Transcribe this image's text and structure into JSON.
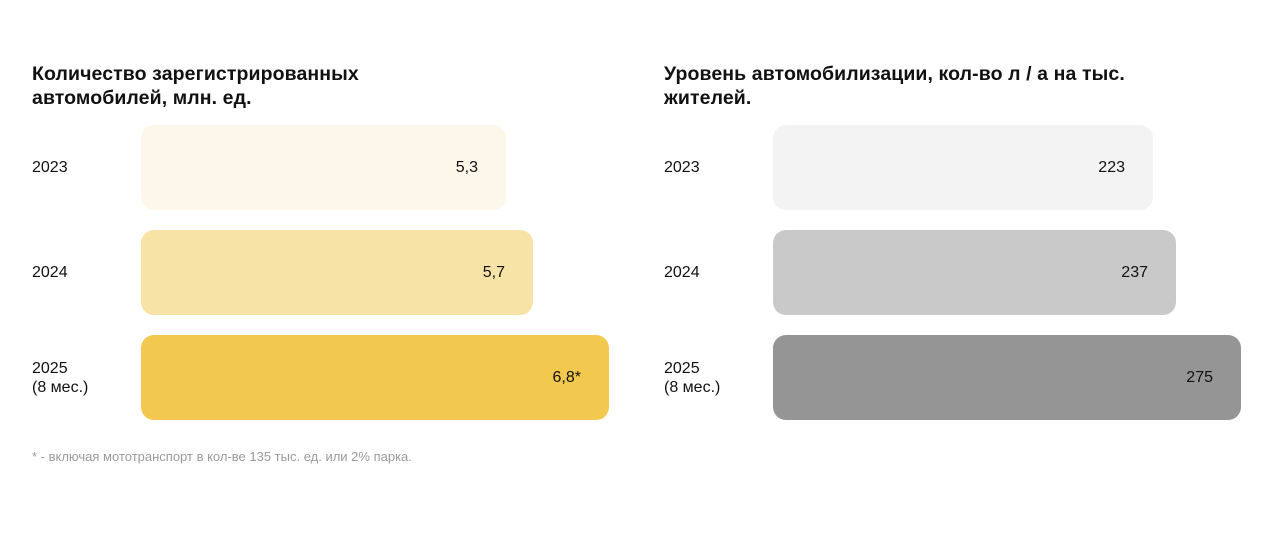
{
  "chart_data": [
    {
      "type": "bar",
      "orientation": "horizontal",
      "title": "Количество зарегистрированных автомобилей, млн. ед.",
      "title_lines": [
        "Количество зарегистрированных",
        "автомобилей, млн. ед."
      ],
      "categories": [
        [
          "2023"
        ],
        [
          "2024"
        ],
        [
          "2025",
          "(8 мес.)"
        ]
      ],
      "values": [
        5.3,
        5.7,
        6.8
      ],
      "value_labels": [
        "5,3",
        "5,7",
        "6,8*"
      ],
      "colors": [
        "#fcf7e9",
        "#f7e3a6",
        "#f2c84e"
      ],
      "xlim": [
        0,
        6.8
      ],
      "grid": false
    },
    {
      "type": "bar",
      "orientation": "horizontal",
      "title": "Уровень автомобилизации, кол-во л / а на тыс. жителей.",
      "title_lines": [
        "Уровень автомобилизации, кол-во л / а на тыс.",
        "жителей."
      ],
      "categories": [
        [
          "2023"
        ],
        [
          "2024"
        ],
        [
          "2025",
          "(8 мес.)"
        ]
      ],
      "values": [
        223,
        237,
        275
      ],
      "value_labels": [
        "223",
        "237",
        "275"
      ],
      "colors": [
        "#f3f3f3",
        "#c9c9c9",
        "#959595"
      ],
      "xlim": [
        0,
        275
      ],
      "grid": false
    }
  ],
  "footnote": "* - включая мототранспорт в кол-ве 135 тыс. ед. или 2% парка."
}
